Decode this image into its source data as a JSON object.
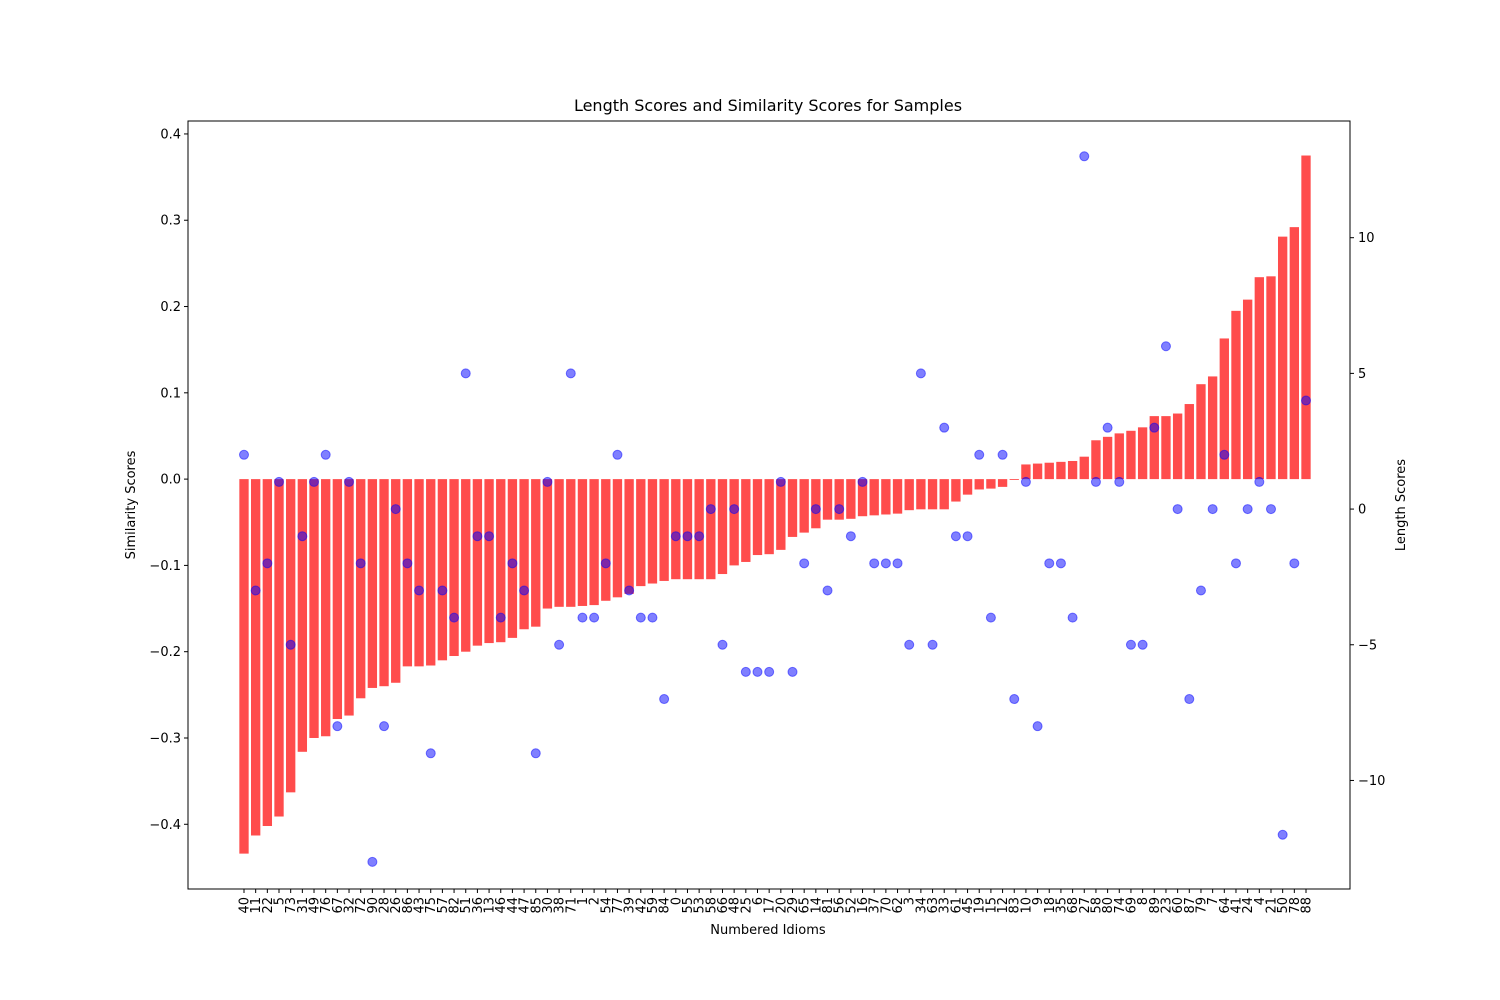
{
  "chart_data": {
    "type": "bar",
    "title": "Length Scores and Similarity Scores for Samples",
    "xlabel": "Numbered Idioms",
    "ylabel_left": "Similarity Scores",
    "ylabel_right": "Length Scores",
    "ylim_left": [
      -0.475,
      0.415
    ],
    "ylim_right": [
      -14,
      14.3
    ],
    "yticks_left": [
      -0.4,
      -0.3,
      -0.2,
      -0.1,
      0.0,
      0.1,
      0.2,
      0.3,
      0.4
    ],
    "yticks_right": [
      -10,
      -5,
      0,
      5,
      10
    ],
    "yticks_left_labels": [
      "−0.4",
      "−0.3",
      "−0.2",
      "−0.1",
      "0.0",
      "0.1",
      "0.2",
      "0.3",
      "0.4"
    ],
    "yticks_right_labels": [
      "−10",
      "−5",
      "0",
      "5",
      "10"
    ],
    "categories": [
      "40",
      "11",
      "22",
      "5",
      "73",
      "31",
      "49",
      "76",
      "67",
      "32",
      "72",
      "90",
      "28",
      "26",
      "86",
      "43",
      "75",
      "57",
      "82",
      "51",
      "36",
      "13",
      "46",
      "44",
      "47",
      "85",
      "30",
      "38",
      "71",
      "1",
      "2",
      "54",
      "77",
      "39",
      "42",
      "59",
      "84",
      "0",
      "55",
      "53",
      "58",
      "66",
      "48",
      "25",
      "6",
      "17",
      "20",
      "29",
      "65",
      "14",
      "81",
      "56",
      "52",
      "16",
      "37",
      "70",
      "62",
      "3",
      "34",
      "63",
      "33",
      "61",
      "45",
      "19",
      "15",
      "12",
      "83",
      "10",
      "9",
      "18",
      "35",
      "68",
      "27",
      "58",
      "80",
      "74",
      "69",
      "8",
      "89",
      "23",
      "60",
      "87",
      "79",
      "7",
      "64",
      "41",
      "24",
      "4",
      "21",
      "50",
      "78",
      "88"
    ],
    "series": [
      {
        "name": "",
        "kind": "bar",
        "axis": "left",
        "color": "#ff0000",
        "values": [
          -0.434,
          -0.413,
          -0.402,
          -0.391,
          -0.363,
          -0.316,
          -0.3,
          -0.298,
          -0.278,
          -0.274,
          -0.254,
          -0.242,
          -0.24,
          -0.236,
          -0.217,
          -0.217,
          -0.216,
          -0.21,
          -0.205,
          -0.2,
          -0.193,
          -0.19,
          -0.189,
          -0.184,
          -0.174,
          -0.171,
          -0.15,
          -0.148,
          -0.148,
          -0.147,
          -0.146,
          -0.141,
          -0.137,
          -0.133,
          -0.124,
          -0.121,
          -0.118,
          -0.116,
          -0.116,
          -0.116,
          -0.116,
          -0.11,
          -0.1,
          -0.096,
          -0.088,
          -0.087,
          -0.082,
          -0.067,
          -0.062,
          -0.057,
          -0.047,
          -0.047,
          -0.046,
          -0.043,
          -0.042,
          -0.041,
          -0.04,
          -0.036,
          -0.035,
          -0.035,
          -0.035,
          -0.026,
          -0.018,
          -0.012,
          -0.011,
          -0.009,
          -0.001,
          0.017,
          0.018,
          0.019,
          0.02,
          0.021,
          0.026,
          0.045,
          0.049,
          0.053,
          0.056,
          0.06,
          0.073,
          0.073,
          0.076,
          0.087,
          0.11,
          0.119,
          0.163,
          0.195,
          0.208,
          0.234,
          0.235,
          0.281,
          0.292,
          0.375
        ]
      },
      {
        "name": "",
        "kind": "scatter",
        "axis": "right",
        "color": "#0000ff",
        "values": [
          2,
          -3,
          -2,
          1,
          -5,
          -1,
          1,
          2,
          -8,
          1,
          -2,
          -13,
          -8,
          0,
          -2,
          -3,
          -9,
          -3,
          -4,
          5,
          -1,
          -1,
          -4,
          -2,
          -3,
          -9,
          1,
          -5,
          5,
          -4,
          -4,
          -2,
          2,
          -3,
          -4,
          -4,
          -7,
          -1,
          -1,
          -1,
          0,
          -5,
          0,
          -6,
          -6,
          -6,
          1,
          -6,
          -2,
          0,
          -3,
          0,
          -1,
          1,
          -2,
          -2,
          -2,
          -5,
          5,
          -5,
          3,
          -1,
          -1,
          2,
          -4,
          2,
          -7,
          1,
          -8,
          -2,
          -2,
          -4,
          13,
          1,
          3,
          1,
          -5,
          -5,
          3,
          6,
          0,
          -7,
          -3,
          0,
          2,
          -2,
          0,
          1,
          0,
          -12,
          -2,
          4
        ]
      }
    ],
    "grid": false
  }
}
